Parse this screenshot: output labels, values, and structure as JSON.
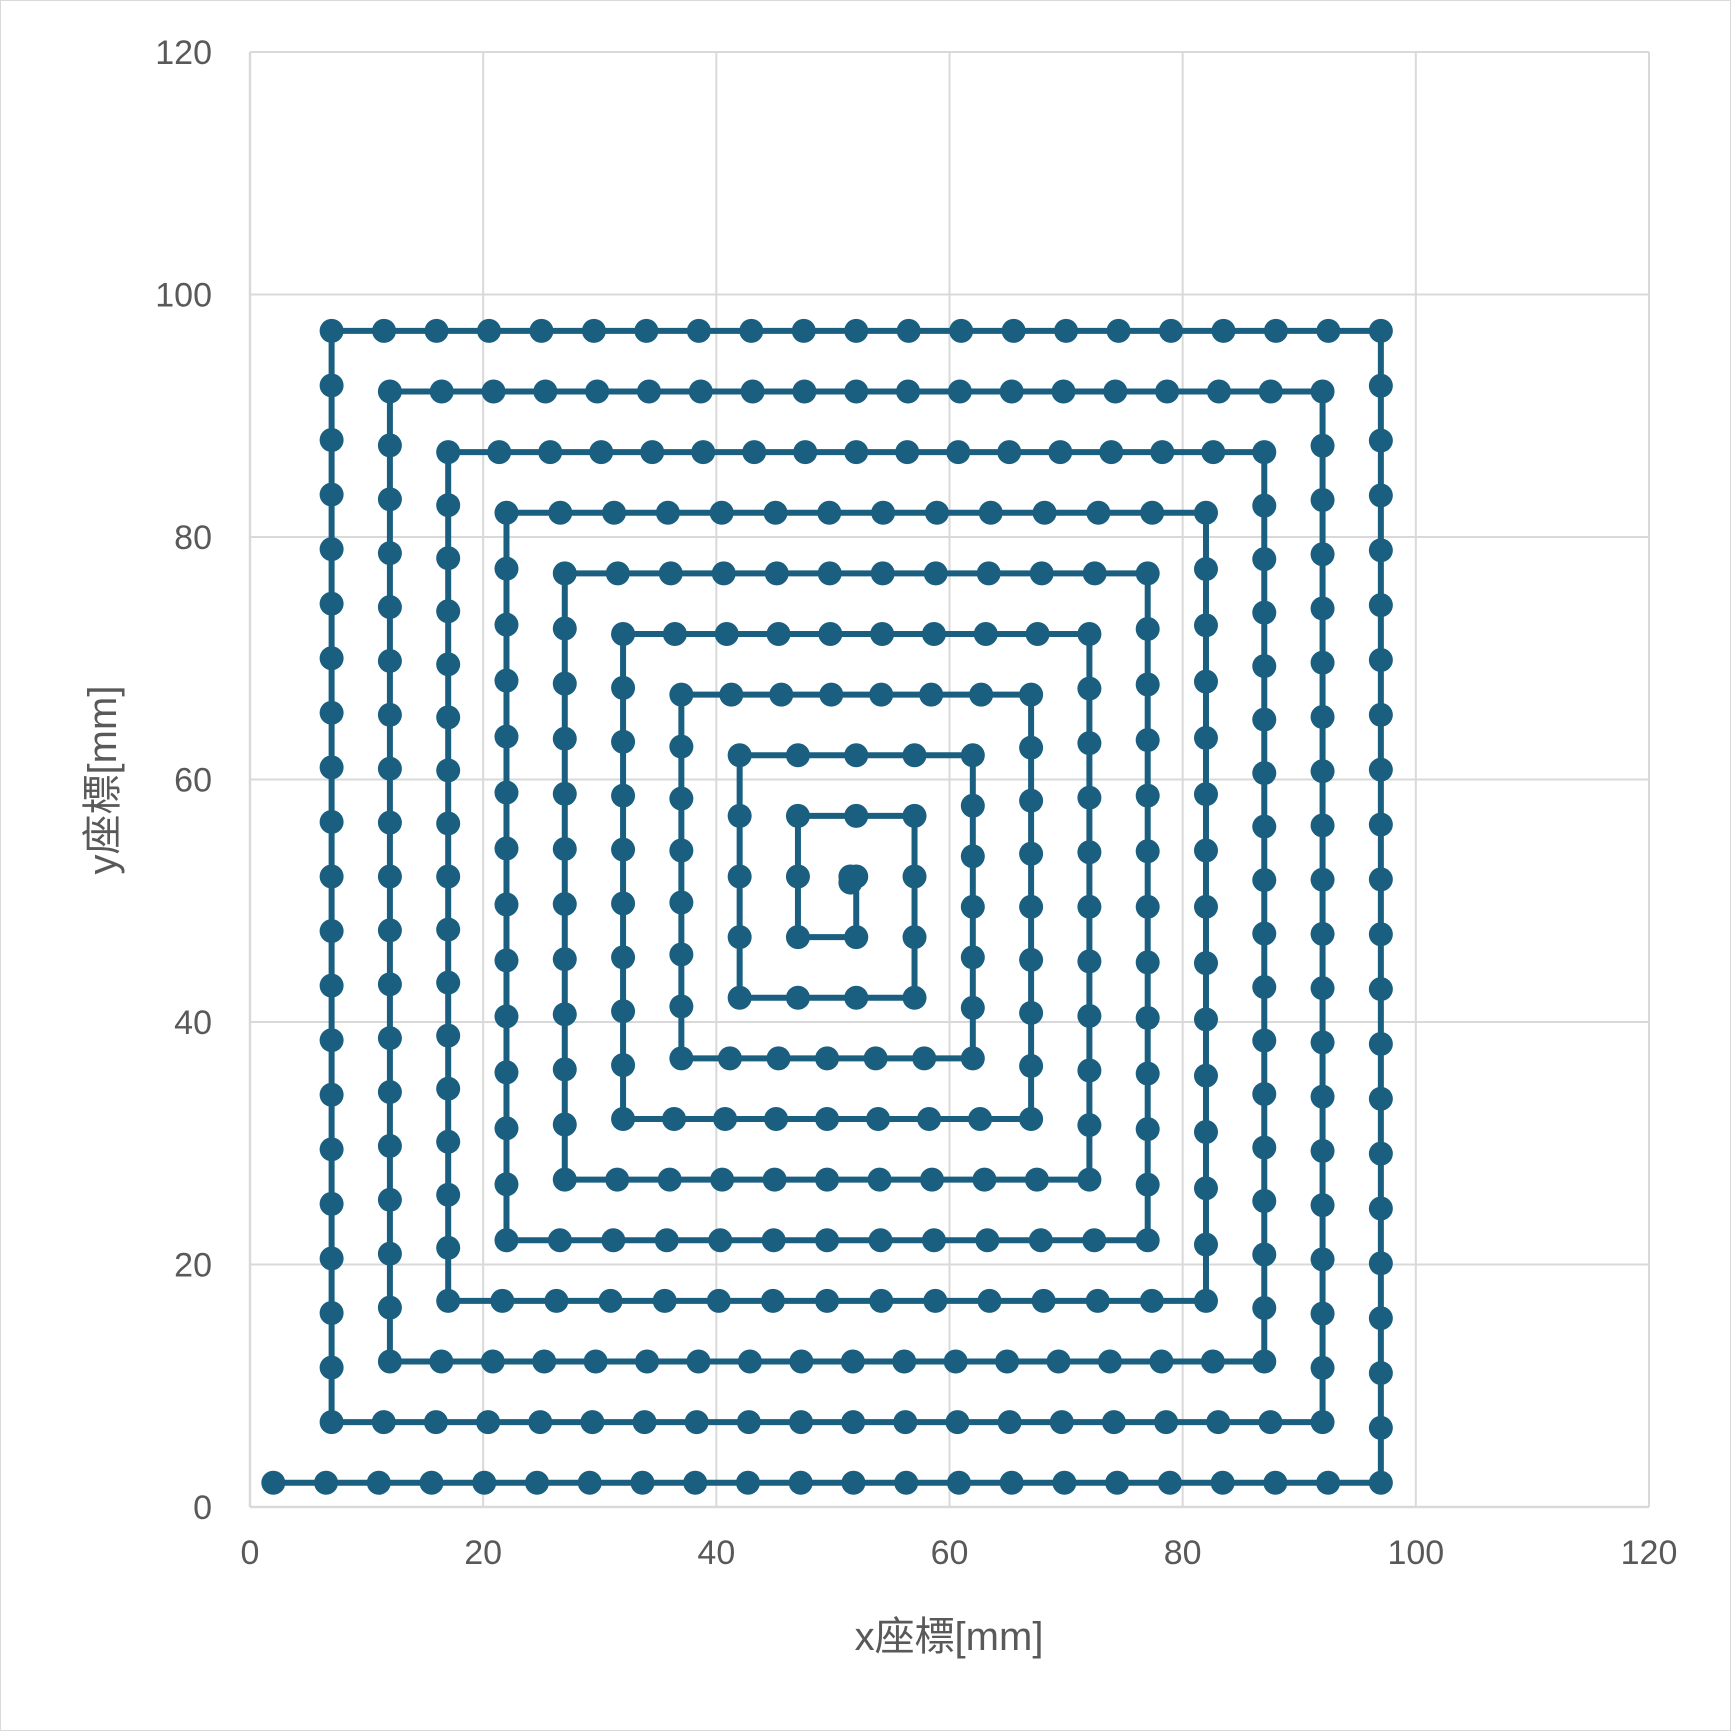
{
  "chart_data": {
    "type": "scatter",
    "title": "",
    "xlabel": "x座標[mm]",
    "ylabel": "y座標[mm]",
    "xlim": [
      0,
      120
    ],
    "ylim": [
      0,
      120
    ],
    "x_ticks": [
      "0",
      "20",
      "40",
      "60",
      "80",
      "100",
      "120"
    ],
    "y_ticks": [
      "0",
      "20",
      "40",
      "60",
      "80",
      "100",
      "120"
    ],
    "grid": true,
    "legend": "none",
    "series_color": "#1a5e80",
    "grid_color": "#d9d9d9",
    "series": [
      {
        "style": "line-with-markers",
        "path": "square spiral traversed from outer start point inward",
        "corners": [
          [
            2,
            2
          ],
          [
            97,
            2
          ],
          [
            97,
            97
          ],
          [
            7,
            97
          ],
          [
            7,
            7
          ],
          [
            92,
            7
          ],
          [
            92,
            92
          ],
          [
            12,
            92
          ],
          [
            12,
            12
          ],
          [
            87,
            12
          ],
          [
            87,
            87
          ],
          [
            17,
            87
          ],
          [
            17,
            17
          ],
          [
            82,
            17
          ],
          [
            82,
            82
          ],
          [
            22,
            82
          ],
          [
            22,
            22
          ],
          [
            77,
            22
          ],
          [
            77,
            77
          ],
          [
            27,
            77
          ],
          [
            27,
            27
          ],
          [
            72,
            27
          ],
          [
            72,
            72
          ],
          [
            32,
            72
          ],
          [
            32,
            32
          ],
          [
            67,
            32
          ],
          [
            67,
            67
          ],
          [
            37,
            67
          ],
          [
            37,
            37
          ],
          [
            62,
            37
          ],
          [
            62,
            62
          ],
          [
            42,
            62
          ],
          [
            42,
            42
          ],
          [
            57,
            42
          ],
          [
            57,
            57
          ],
          [
            47,
            57
          ],
          [
            47,
            47
          ],
          [
            52,
            47
          ],
          [
            52,
            52
          ],
          [
            51.5,
            52
          ],
          [
            51.5,
            51.5
          ]
        ],
        "point_spacing_mm": 4.5
      }
    ]
  }
}
